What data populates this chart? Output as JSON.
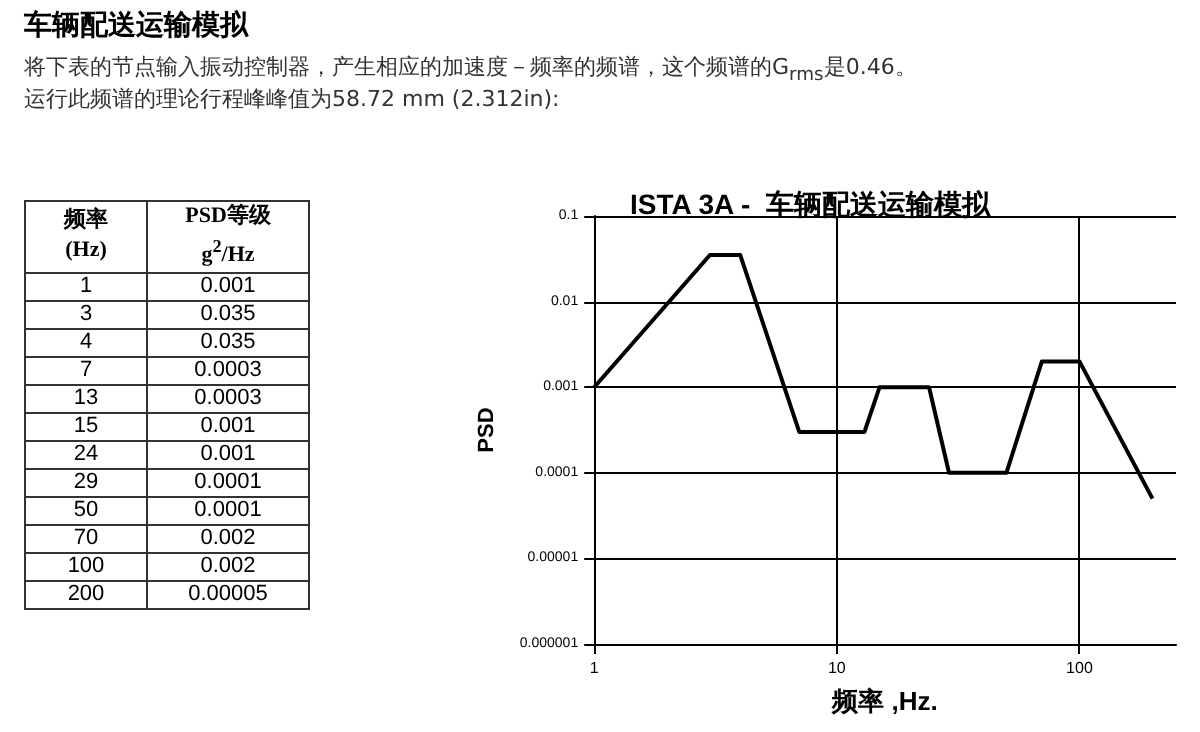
{
  "chart_data": [
    {
      "type": "other",
      "title": "车辆配送运输模拟",
      "annotations": [
        "将下表的节点输入振动控制器，产生相应的加速度－频率的频谱，这个频谱的G$_{rms}$是0.46。",
        "运行此频谱的理论行程峰峰值为58.72 mm (2.312in):",
        "频率 (Hz)",
        "PSD等级 g$^{2}$/Hz"
      ],
      "categories": [
        "1",
        "3",
        "4",
        "7",
        "13",
        "15",
        "24",
        "29",
        "50",
        "70",
        "100",
        "200"
      ],
      "value_labels": [
        "0.001",
        "0.035",
        "0.035",
        "0.0003",
        "0.0003",
        "0.001",
        "0.001",
        "0.0001",
        "0.0001",
        "0.002",
        "0.002",
        "0.00005"
      ]
    },
    {
      "type": "line",
      "title": "ISTA 3A -  车辆配送运输模拟",
      "xlabel": "频率 ,Hz.",
      "ylabel": "PSD",
      "x": [
        1,
        3,
        4,
        7,
        13,
        15,
        24,
        29,
        50,
        70,
        100,
        200
      ],
      "series": [
        {
          "color": "#000000",
          "values": [
            0.001,
            0.035,
            0.035,
            0.0003,
            0.0003,
            0.001,
            0.001,
            0.0001,
            0.0001,
            0.002,
            0.002,
            5e-05
          ]
        }
      ],
      "log": "xy",
      "grid": true,
      "marker": "none",
      "xlim": [
        1,
        250
      ],
      "xticks": [
        1,
        10,
        100
      ],
      "ylim": [
        1e-06,
        0.1
      ],
      "yticks": [
        0.1,
        0.01,
        0.001,
        0.0001,
        {
          "value": 1e-05,
          "label": "0.00001"
        },
        {
          "value": 1e-06,
          "label": "0.000001"
        }
      ]
    }
  ]
}
